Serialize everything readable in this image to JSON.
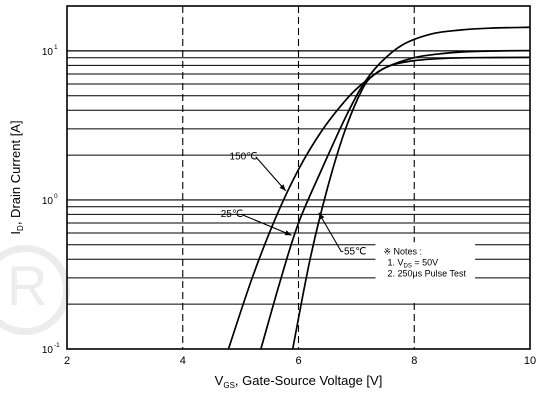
{
  "chart_data": {
    "type": "line",
    "scale_y": "log",
    "xlim": [
      2,
      10
    ],
    "ylim": [
      0.1,
      20
    ],
    "x_ticks": [
      "2",
      "4",
      "6",
      "8",
      "10"
    ],
    "y_ticks": [
      {
        "label": "10",
        "exp": "-1",
        "value": 0.1
      },
      {
        "label": "10",
        "exp": "0",
        "value": 1
      },
      {
        "label": "10",
        "exp": "1",
        "value": 10
      }
    ],
    "xlabel": {
      "pre": "V",
      "sub": "GS",
      "post": ", Gate-Source Voltage  [V]"
    },
    "ylabel": {
      "pre": "I",
      "sub": "D",
      "post": ", Drain Current  [A]"
    },
    "grid": true,
    "series": [
      {
        "name": "150℃",
        "x": [
          4.79,
          5.2,
          5.6,
          6.0,
          6.4,
          6.8,
          7.1,
          7.5,
          8.0,
          8.5,
          9.0,
          9.5,
          10.0
        ],
        "y": [
          0.1,
          0.3,
          0.75,
          1.6,
          2.9,
          4.6,
          6.0,
          7.7,
          9.0,
          9.6,
          9.9,
          10.0,
          10.05
        ]
      },
      {
        "name": "25℃",
        "x": [
          5.35,
          5.7,
          6.0,
          6.4,
          6.8,
          7.1,
          7.4,
          7.8,
          8.3,
          8.8,
          9.3,
          10.0
        ],
        "y": [
          0.1,
          0.3,
          0.7,
          1.6,
          3.5,
          5.8,
          8.2,
          11.0,
          13.0,
          13.8,
          14.2,
          14.4
        ]
      },
      {
        "name": "-55℃",
        "x": [
          5.9,
          6.2,
          6.5,
          6.8,
          7.1,
          7.3,
          7.6,
          8.0,
          8.5,
          9.0,
          10.0
        ],
        "y": [
          0.1,
          0.4,
          1.2,
          2.9,
          5.5,
          6.9,
          8.0,
          8.6,
          8.9,
          9.0,
          9.05
        ]
      }
    ],
    "curve_labels": [
      {
        "text": "150℃",
        "at": [
          5.05,
          1.95
        ],
        "point": [
          5.78,
          1.15
        ]
      },
      {
        "text": "25℃",
        "at": [
          4.85,
          0.8
        ],
        "point": [
          5.88,
          0.58
        ]
      },
      {
        "text": "-55℃",
        "at": [
          6.95,
          0.45
        ],
        "point": [
          6.35,
          0.82
        ]
      }
    ],
    "notes": {
      "title": "※ Notes :",
      "line1_pre": "1. V",
      "line1_sub": "DS",
      "line1_post": " = 50V",
      "line2": "2. 250μs Pulse Test"
    }
  },
  "watermark": "R"
}
